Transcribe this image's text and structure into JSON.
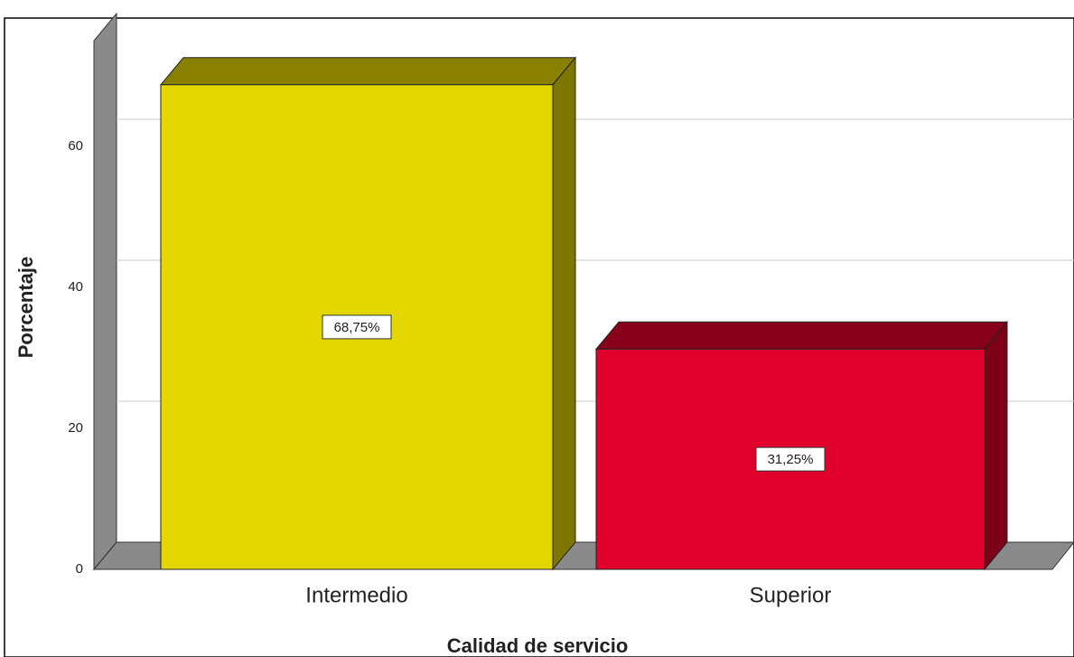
{
  "chart_data": {
    "type": "bar3d",
    "x_label": "Calidad de servicio",
    "y_label": "Porcentaje",
    "categories": [
      "Intermedio",
      "Superior"
    ],
    "values": [
      68.75,
      31.25
    ],
    "value_labels": [
      "68,75%",
      "31,25%"
    ],
    "colors": [
      "#e4d600",
      "#e0002b"
    ],
    "ylim": [
      0,
      78
    ],
    "yticks": [
      0,
      20,
      40,
      60
    ],
    "grid": true
  }
}
